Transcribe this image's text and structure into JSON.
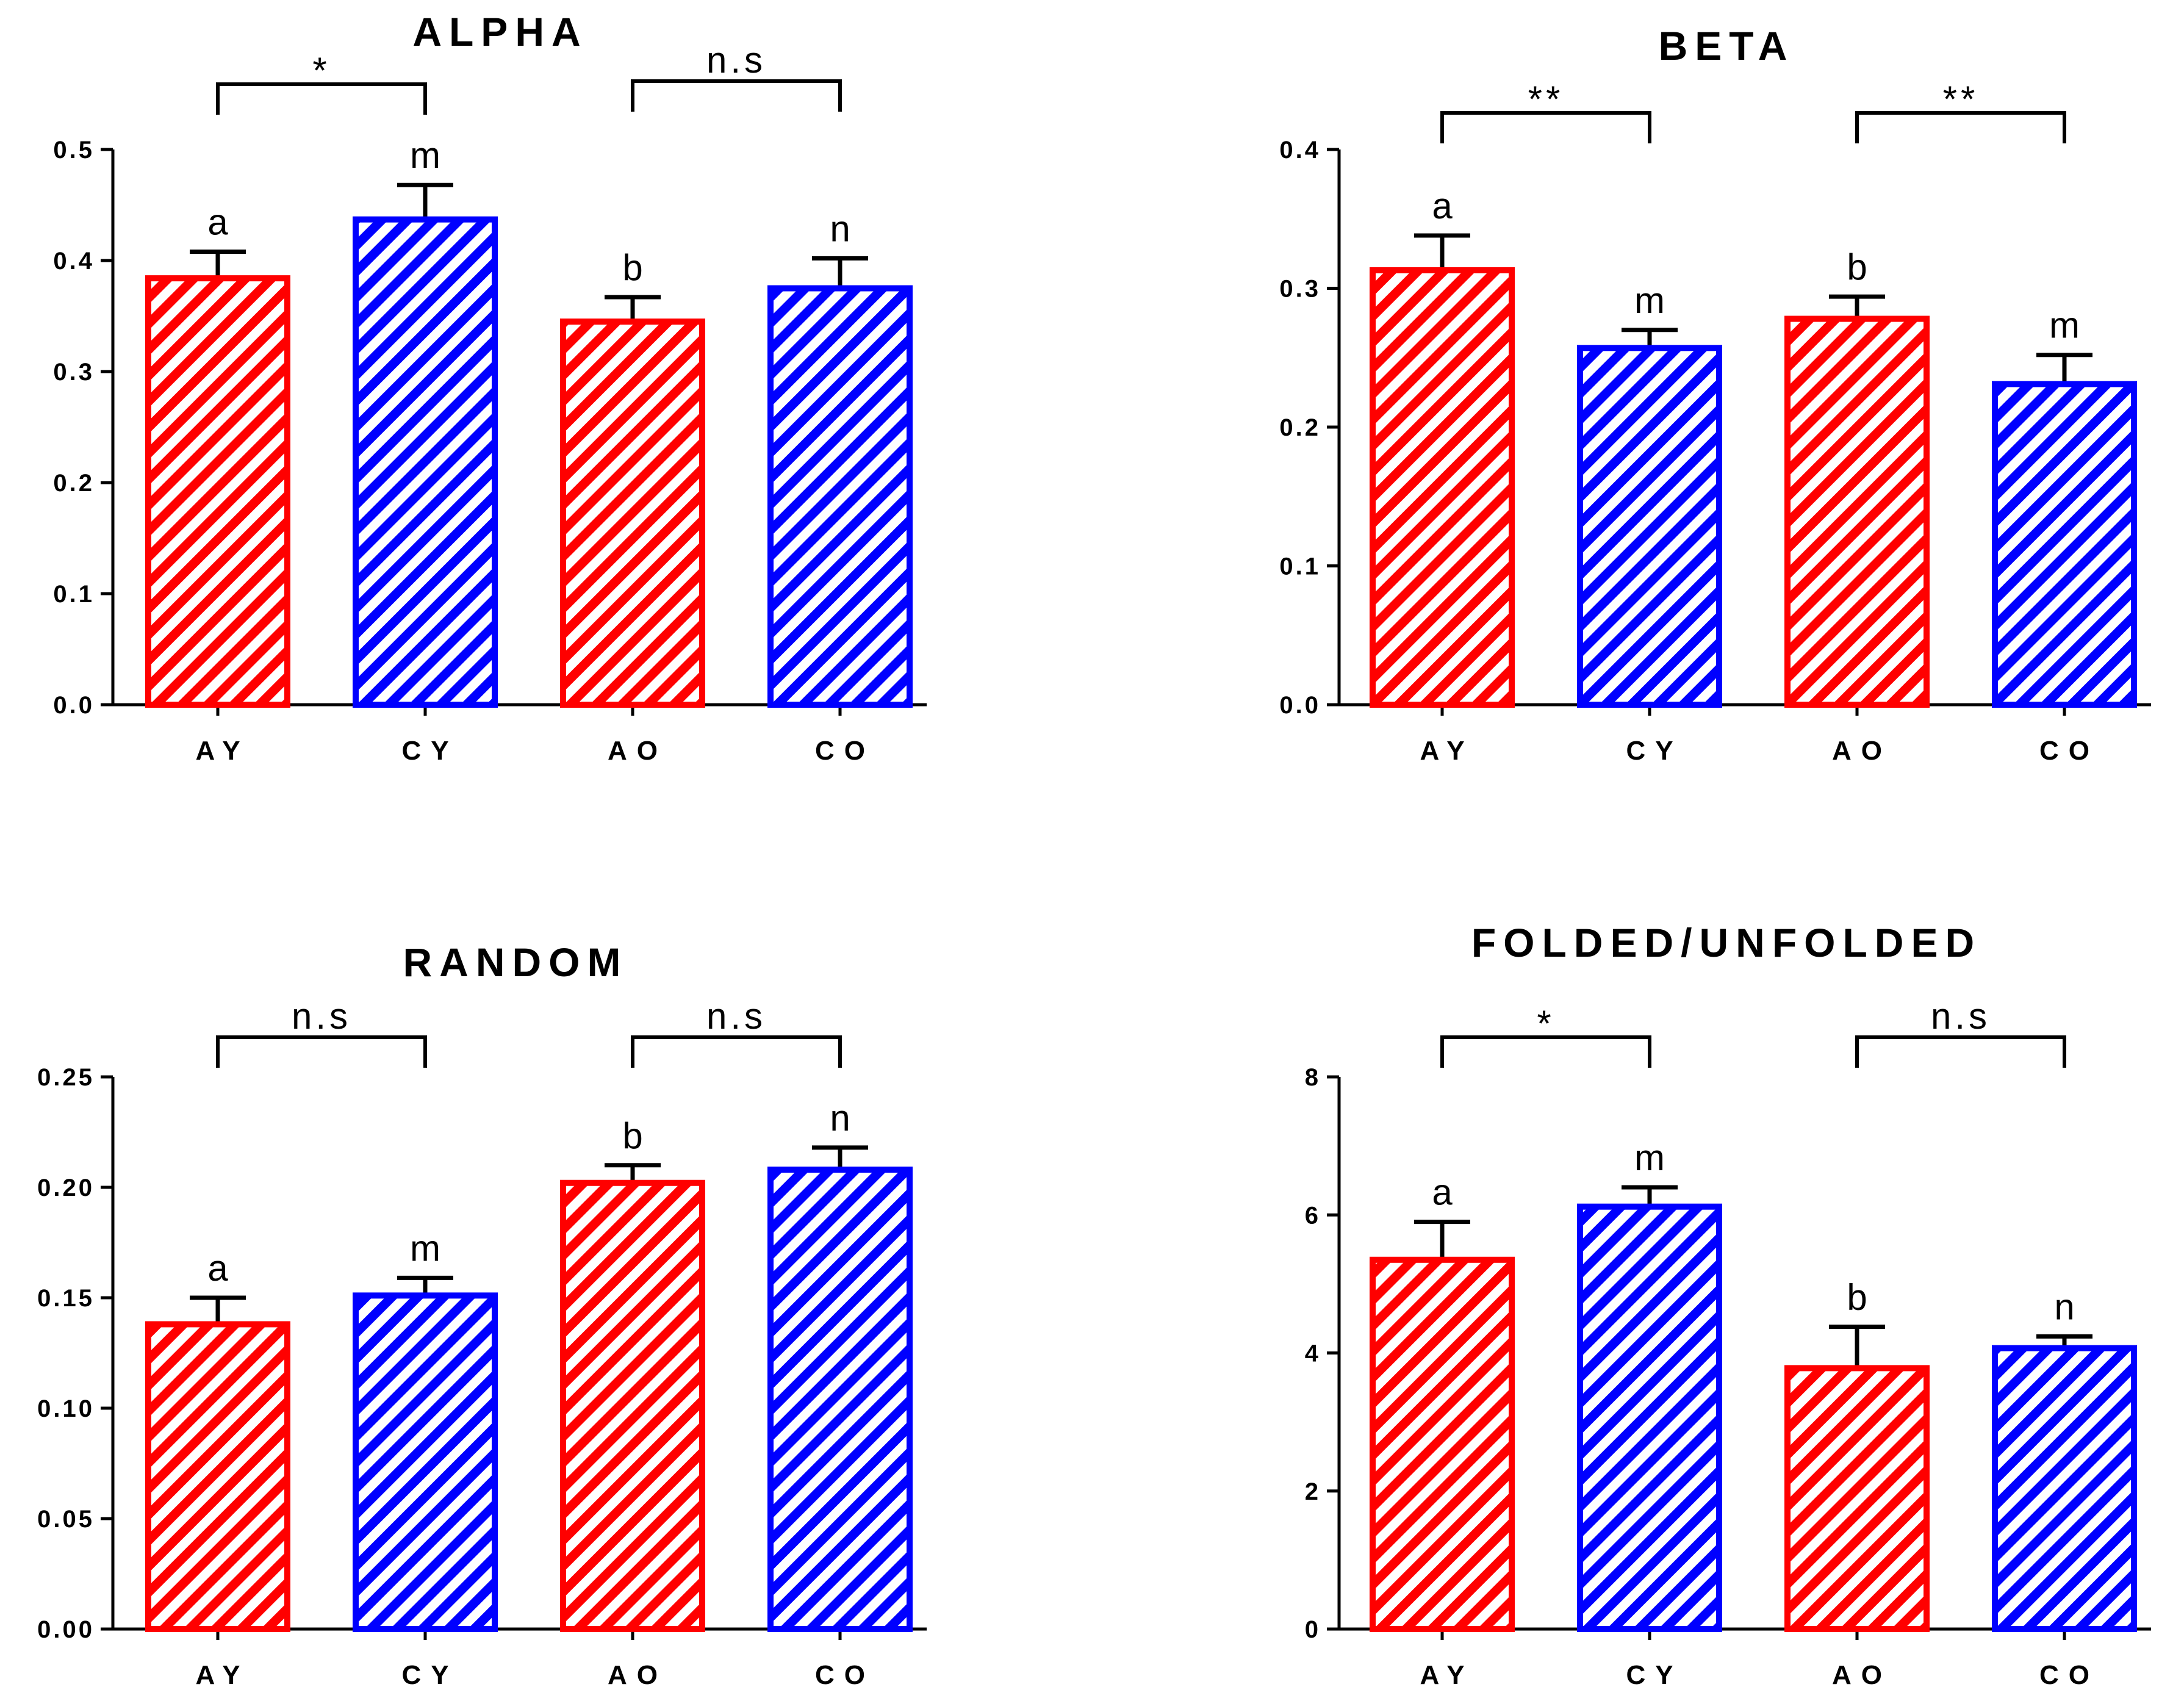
{
  "colors": {
    "adult": "#ff0000",
    "child": "#0000ff",
    "axis": "#000000"
  },
  "chart_data": [
    {
      "type": "bar",
      "title": "ALPHA",
      "categories": [
        "AY",
        "CY",
        "AO",
        "CO"
      ],
      "values": [
        0.384,
        0.437,
        0.345,
        0.375
      ],
      "errors": [
        0.024,
        0.031,
        0.022,
        0.027
      ],
      "bar_labels": [
        "a",
        "m",
        "b",
        "n"
      ],
      "series_colors": [
        "adult",
        "child",
        "adult",
        "child"
      ],
      "ylim": [
        0,
        0.5
      ],
      "yticks": [
        0,
        0.1,
        0.2,
        0.3,
        0.4,
        0.5
      ],
      "ytick_labels": [
        "0.0",
        "0.1",
        "0.2",
        "0.3",
        "0.4",
        "0.5"
      ],
      "xlabel": "",
      "ylabel": "",
      "significance": [
        {
          "from": 0,
          "to": 1,
          "label": "*"
        },
        {
          "from": 2,
          "to": 3,
          "label": "n.s"
        }
      ]
    },
    {
      "type": "bar",
      "title": "BETA",
      "categories": [
        "AY",
        "CY",
        "AO",
        "CO"
      ],
      "values": [
        0.313,
        0.257,
        0.278,
        0.231
      ],
      "errors": [
        0.025,
        0.013,
        0.016,
        0.021
      ],
      "bar_labels": [
        "a",
        "m",
        "b",
        "m"
      ],
      "series_colors": [
        "adult",
        "child",
        "adult",
        "child"
      ],
      "ylim": [
        0,
        0.4
      ],
      "yticks": [
        0,
        0.1,
        0.2,
        0.3,
        0.4
      ],
      "ytick_labels": [
        "0.0",
        "0.1",
        "0.2",
        "0.3",
        "0.4"
      ],
      "xlabel": "",
      "ylabel": "",
      "significance": [
        {
          "from": 0,
          "to": 1,
          "label": "**"
        },
        {
          "from": 2,
          "to": 3,
          "label": "**"
        }
      ]
    },
    {
      "type": "bar",
      "title": "RANDOM",
      "categories": [
        "AY",
        "CY",
        "AO",
        "CO"
      ],
      "values": [
        0.138,
        0.151,
        0.202,
        0.208
      ],
      "errors": [
        0.012,
        0.008,
        0.008,
        0.01
      ],
      "bar_labels": [
        "a",
        "m",
        "b",
        "n"
      ],
      "series_colors": [
        "adult",
        "child",
        "adult",
        "child"
      ],
      "ylim": [
        0,
        0.25
      ],
      "yticks": [
        0,
        0.05,
        0.1,
        0.15,
        0.2,
        0.25
      ],
      "ytick_labels": [
        "0.00",
        "0.05",
        "0.10",
        "0.15",
        "0.20",
        "0.25"
      ],
      "xlabel": "",
      "ylabel": "",
      "significance": [
        {
          "from": 0,
          "to": 1,
          "label": "n.s"
        },
        {
          "from": 2,
          "to": 3,
          "label": "n.s"
        }
      ]
    },
    {
      "type": "bar",
      "title": "FOLDED/UNFOLDED",
      "categories": [
        "AY",
        "CY",
        "AO",
        "CO"
      ],
      "values": [
        5.35,
        6.12,
        3.78,
        4.07
      ],
      "errors": [
        0.55,
        0.28,
        0.6,
        0.17
      ],
      "bar_labels": [
        "a",
        "m",
        "b",
        "n"
      ],
      "series_colors": [
        "adult",
        "child",
        "adult",
        "child"
      ],
      "ylim": [
        0,
        8
      ],
      "yticks": [
        0,
        2,
        4,
        6,
        8
      ],
      "ytick_labels": [
        "0",
        "2",
        "4",
        "6",
        "8"
      ],
      "xlabel": "",
      "ylabel": "",
      "significance": [
        {
          "from": 0,
          "to": 1,
          "label": "*"
        },
        {
          "from": 2,
          "to": 3,
          "label": "n.s"
        }
      ]
    }
  ]
}
